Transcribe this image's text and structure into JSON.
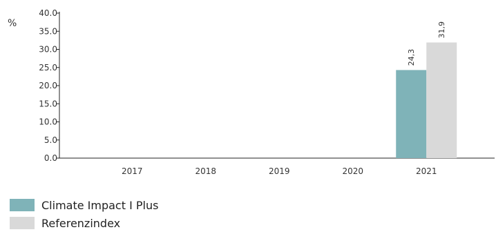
{
  "chart_data": {
    "type": "bar",
    "unit": "%",
    "categories": [
      "2017",
      "2018",
      "2019",
      "2020",
      "2021"
    ],
    "series": [
      {
        "name": "Climate Impact I Plus",
        "color": "#7fb3b8",
        "values": [
          null,
          null,
          null,
          null,
          24.3
        ],
        "labels": [
          "",
          "",
          "",
          "",
          "24,3"
        ]
      },
      {
        "name": "Referenzindex",
        "color": "#d9d9d9",
        "values": [
          null,
          null,
          null,
          null,
          31.9
        ],
        "labels": [
          "",
          "",
          "",
          "",
          "31,9"
        ]
      }
    ],
    "ylim": [
      0,
      40
    ],
    "yticks": [
      "0.0",
      "5.0",
      "10.0",
      "15.0",
      "20.0",
      "25.0",
      "30.0",
      "35.0",
      "40.0"
    ],
    "xlabel": "",
    "ylabel": "",
    "grid": false,
    "legend_position": "bottom-left"
  }
}
